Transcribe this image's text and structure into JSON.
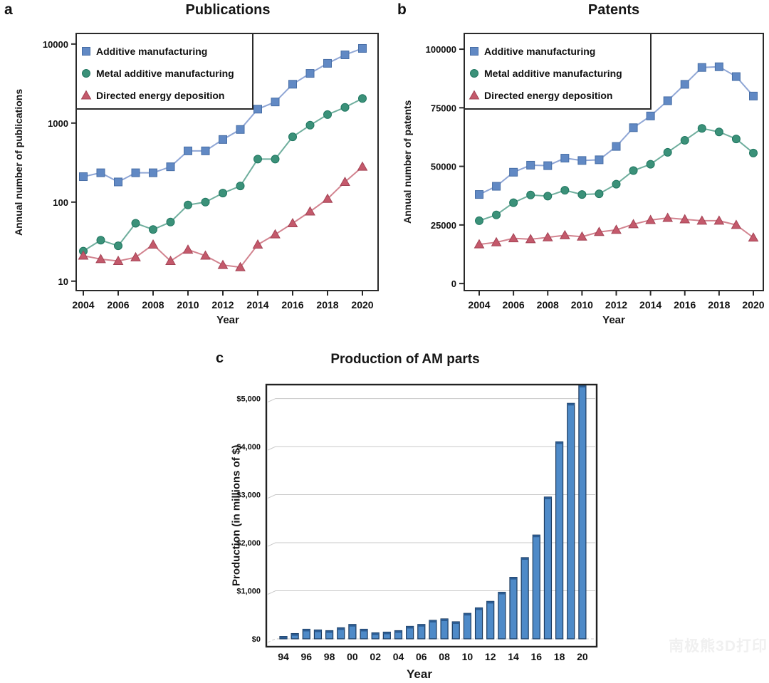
{
  "figure": {
    "panel_labels": [
      "a",
      "b",
      "c"
    ],
    "watermark": "南极熊3D打印"
  },
  "chart_data": [
    {
      "id": "publications",
      "panel": "a",
      "type": "line",
      "title": "Publications",
      "xlabel": "Year",
      "ylabel": "Annual number of publications",
      "yscale": "log",
      "ylim": [
        7.6,
        13600
      ],
      "y_ticks": [
        10,
        100,
        1000,
        10000
      ],
      "y_tick_labels": [
        "10",
        "100",
        "1000",
        "10000"
      ],
      "x": [
        2004,
        2005,
        2006,
        2007,
        2008,
        2009,
        2010,
        2011,
        2012,
        2013,
        2014,
        2015,
        2016,
        2017,
        2018,
        2019,
        2020
      ],
      "x_tick_labels": [
        2004,
        2006,
        2008,
        2010,
        2012,
        2014,
        2016,
        2018,
        2020
      ],
      "grid": false,
      "legend_position": "top-left",
      "series": [
        {
          "name": "Additive manufacturing",
          "marker": "square",
          "color": "#6189c4",
          "edge_color": "#476ea6",
          "line_color": "#8fa6d5",
          "values": [
            210,
            235,
            180,
            235,
            235,
            280,
            445,
            445,
            620,
            830,
            1500,
            1850,
            3100,
            4250,
            5700,
            7300,
            8800
          ]
        },
        {
          "name": "Metal additive manufacturing",
          "marker": "circle",
          "color": "#3b9179",
          "edge_color": "#1f7660",
          "line_color": "#6fae9d",
          "values": [
            24,
            33,
            28,
            54,
            45,
            56,
            92,
            100,
            130,
            160,
            350,
            350,
            670,
            940,
            1280,
            1580,
            2050
          ]
        },
        {
          "name": "Directed energy deposition",
          "marker": "triangle",
          "color": "#c4596b",
          "edge_color": "#a34355",
          "line_color": "#d2838f",
          "values": [
            21,
            19,
            18,
            20,
            29,
            18,
            25,
            21,
            16,
            15,
            29,
            39,
            54,
            76,
            110,
            180,
            280
          ]
        }
      ]
    },
    {
      "id": "patents",
      "panel": "b",
      "type": "line",
      "title": "Patents",
      "xlabel": "Year",
      "ylabel": "Annual number of patents",
      "yscale": "linear",
      "ylim": [
        -3000,
        106700
      ],
      "y_ticks": [
        0,
        25000,
        50000,
        75000,
        100000
      ],
      "y_tick_labels": [
        "0",
        "25000",
        "50000",
        "75000",
        "100000"
      ],
      "x": [
        2004,
        2005,
        2006,
        2007,
        2008,
        2009,
        2010,
        2011,
        2012,
        2013,
        2014,
        2015,
        2016,
        2017,
        2018,
        2019,
        2020
      ],
      "x_tick_labels": [
        2004,
        2006,
        2008,
        2010,
        2012,
        2014,
        2016,
        2018,
        2020
      ],
      "grid": false,
      "legend_position": "top-left",
      "series": [
        {
          "name": "Additive manufacturing",
          "marker": "square",
          "color": "#6189c4",
          "edge_color": "#476ea6",
          "line_color": "#8fa6d5",
          "values": [
            38000,
            41500,
            47500,
            50500,
            50300,
            53500,
            52500,
            52800,
            58500,
            66500,
            71500,
            78000,
            85000,
            92200,
            92500,
            88300,
            80000
          ]
        },
        {
          "name": "Metal additive manufacturing",
          "marker": "circle",
          "color": "#3b9179",
          "edge_color": "#1f7660",
          "line_color": "#6fae9d",
          "values": [
            26800,
            29300,
            34500,
            37800,
            37300,
            39800,
            38000,
            38300,
            42400,
            48200,
            50900,
            56000,
            61100,
            66200,
            64700,
            61700,
            55700
          ]
        },
        {
          "name": "Directed energy deposition",
          "marker": "triangle",
          "color": "#c4596b",
          "edge_color": "#a34355",
          "line_color": "#d2838f",
          "values": [
            16700,
            17600,
            19300,
            18900,
            19700,
            20600,
            20000,
            22000,
            22900,
            25300,
            27100,
            28000,
            27400,
            26800,
            26800,
            25000,
            19600
          ]
        }
      ]
    },
    {
      "id": "am_parts_production",
      "panel": "c",
      "type": "bar",
      "title": "Production of AM parts",
      "xlabel": "Year",
      "ylabel": "Production (in millions of $)",
      "ylim": [
        0,
        5290
      ],
      "y_ticks": [
        0,
        1000,
        2000,
        3000,
        4000,
        5000
      ],
      "y_tick_labels": [
        "$0",
        "$1,000",
        "$2,000",
        "$3,000",
        "$4,000",
        "$5,000"
      ],
      "categories": [
        "94",
        "95",
        "96",
        "97",
        "98",
        "99",
        "00",
        "01",
        "02",
        "03",
        "04",
        "05",
        "06",
        "07",
        "08",
        "09",
        "10",
        "11",
        "12",
        "13",
        "14",
        "15",
        "16",
        "17",
        "18",
        "19",
        "20"
      ],
      "x_tick_labels": [
        "94",
        "96",
        "98",
        "00",
        "02",
        "04",
        "06",
        "08",
        "10",
        "12",
        "14",
        "16",
        "18",
        "20"
      ],
      "values": [
        50,
        110,
        200,
        185,
        170,
        230,
        300,
        200,
        125,
        140,
        170,
        260,
        300,
        385,
        415,
        355,
        530,
        645,
        780,
        970,
        1280,
        1690,
        2160,
        2950,
        4100,
        4900,
        5280
      ],
      "bar_color": "#4e8ac8",
      "bar_edge_color": "#1c3a5e",
      "bar_top_color": "#2c5c92",
      "grid_color": "#c8c8c8",
      "frame_color": "#222222"
    }
  ]
}
